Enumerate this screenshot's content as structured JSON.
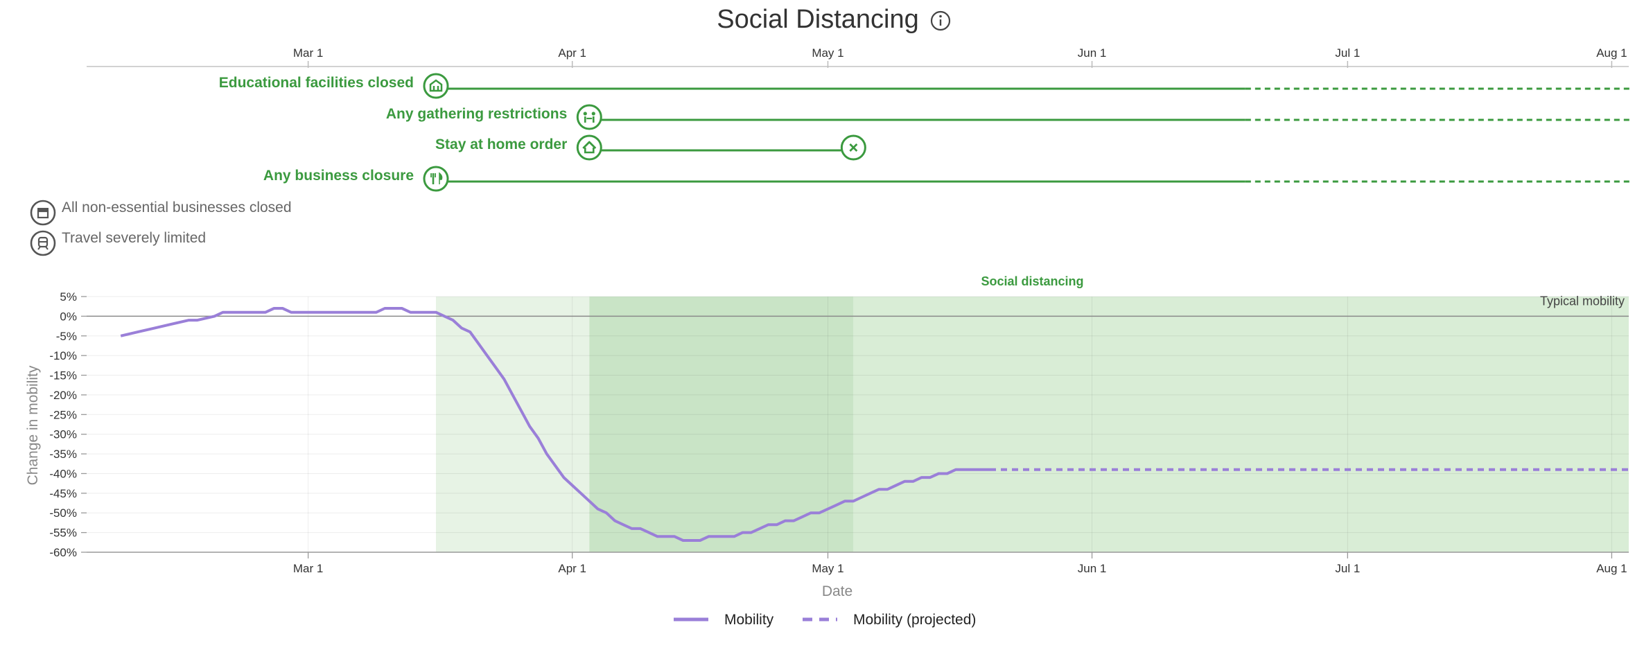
{
  "title": "Social Distancing",
  "timeline": {
    "tick_labels": [
      "Mar 1",
      "Apr 1",
      "May 1",
      "Jun 1",
      "Jul 1",
      "Aug 1"
    ],
    "tick_dates": [
      "2020-03-01",
      "2020-04-01",
      "2020-05-01",
      "2020-06-01",
      "2020-07-01",
      "2020-08-01"
    ],
    "today": "2020-06-19",
    "interventions": [
      {
        "label": "Educational facilities closed",
        "icon": "school-icon",
        "start": "2020-03-16",
        "end": null
      },
      {
        "label": "Any gathering restrictions",
        "icon": "gathering-icon",
        "start": "2020-04-03",
        "end": null
      },
      {
        "label": "Stay at home order",
        "icon": "home-icon",
        "start": "2020-04-03",
        "end": "2020-05-04"
      },
      {
        "label": "Any business closure",
        "icon": "business-icon",
        "start": "2020-03-16",
        "end": null
      }
    ],
    "legend": [
      {
        "label": "All non-essential businesses closed",
        "icon": "store-icon"
      },
      {
        "label": "Travel severely limited",
        "icon": "train-icon"
      }
    ]
  },
  "colors": {
    "green": "#3b9a3f",
    "mobility": "#9a7fd8",
    "band_light": "#e7f3e5",
    "band_dark": "#c9e4c6",
    "band_mid": "#d9edd6",
    "grid": "#e6e6e6",
    "axis_text": "#333333",
    "muted": "#888888"
  },
  "chart_data": {
    "type": "line",
    "title": "",
    "xlabel": "Date",
    "ylabel": "Change in mobility",
    "x_range": [
      "2020-02-04",
      "2020-08-03"
    ],
    "ylim": [
      -60,
      5
    ],
    "yticks": [
      5,
      0,
      -5,
      -10,
      -15,
      -20,
      -25,
      -30,
      -35,
      -40,
      -45,
      -50,
      -55,
      -60
    ],
    "ytick_labels": [
      "5%",
      "0%",
      "-5%",
      "-10%",
      "-15%",
      "-20%",
      "-25%",
      "-30%",
      "-35%",
      "-40%",
      "-45%",
      "-50%",
      "-55%",
      "-60%"
    ],
    "xticks": [
      "2020-03-01",
      "2020-04-01",
      "2020-05-01",
      "2020-06-01",
      "2020-07-01",
      "2020-08-01"
    ],
    "xtick_labels": [
      "Mar 1",
      "Apr 1",
      "May 1",
      "Jun 1",
      "Jul 1",
      "Aug 1"
    ],
    "grid": true,
    "reference_line": {
      "y": 0,
      "label": "Typical mobility"
    },
    "bands": [
      {
        "start": "2020-03-16",
        "end": "2020-04-03",
        "shade": "light"
      },
      {
        "start": "2020-04-03",
        "end": "2020-05-04",
        "shade": "dark"
      },
      {
        "start": "2020-05-04",
        "end": "2020-08-03",
        "shade": "mid"
      }
    ],
    "band_label": "Social distancing",
    "series": [
      {
        "name": "Mobility",
        "style": "solid",
        "points": [
          [
            "2020-02-08",
            -5
          ],
          [
            "2020-02-10",
            -4
          ],
          [
            "2020-02-12",
            -3
          ],
          [
            "2020-02-14",
            -2
          ],
          [
            "2020-02-16",
            -1
          ],
          [
            "2020-02-17",
            -1
          ],
          [
            "2020-02-19",
            0
          ],
          [
            "2020-02-20",
            1
          ],
          [
            "2020-02-22",
            1
          ],
          [
            "2020-02-24",
            1
          ],
          [
            "2020-02-25",
            1
          ],
          [
            "2020-02-26",
            2
          ],
          [
            "2020-02-27",
            2
          ],
          [
            "2020-02-28",
            1
          ],
          [
            "2020-03-01",
            1
          ],
          [
            "2020-03-03",
            1
          ],
          [
            "2020-03-05",
            1
          ],
          [
            "2020-03-07",
            1
          ],
          [
            "2020-03-09",
            1
          ],
          [
            "2020-03-10",
            2
          ],
          [
            "2020-03-12",
            2
          ],
          [
            "2020-03-13",
            1
          ],
          [
            "2020-03-14",
            1
          ],
          [
            "2020-03-16",
            1
          ],
          [
            "2020-03-17",
            0
          ],
          [
            "2020-03-18",
            -1
          ],
          [
            "2020-03-19",
            -3
          ],
          [
            "2020-03-20",
            -4
          ],
          [
            "2020-03-21",
            -7
          ],
          [
            "2020-03-22",
            -10
          ],
          [
            "2020-03-23",
            -13
          ],
          [
            "2020-03-24",
            -16
          ],
          [
            "2020-03-25",
            -20
          ],
          [
            "2020-03-26",
            -24
          ],
          [
            "2020-03-27",
            -28
          ],
          [
            "2020-03-28",
            -31
          ],
          [
            "2020-03-29",
            -35
          ],
          [
            "2020-03-30",
            -38
          ],
          [
            "2020-03-31",
            -41
          ],
          [
            "2020-04-01",
            -43
          ],
          [
            "2020-04-02",
            -45
          ],
          [
            "2020-04-03",
            -47
          ],
          [
            "2020-04-04",
            -49
          ],
          [
            "2020-04-05",
            -50
          ],
          [
            "2020-04-06",
            -52
          ],
          [
            "2020-04-07",
            -53
          ],
          [
            "2020-04-08",
            -54
          ],
          [
            "2020-04-09",
            -54
          ],
          [
            "2020-04-10",
            -55
          ],
          [
            "2020-04-11",
            -56
          ],
          [
            "2020-04-13",
            -56
          ],
          [
            "2020-04-14",
            -57
          ],
          [
            "2020-04-16",
            -57
          ],
          [
            "2020-04-17",
            -56
          ],
          [
            "2020-04-20",
            -56
          ],
          [
            "2020-04-21",
            -55
          ],
          [
            "2020-04-22",
            -55
          ],
          [
            "2020-04-23",
            -54
          ],
          [
            "2020-04-24",
            -53
          ],
          [
            "2020-04-25",
            -53
          ],
          [
            "2020-04-26",
            -52
          ],
          [
            "2020-04-27",
            -52
          ],
          [
            "2020-04-28",
            -51
          ],
          [
            "2020-04-29",
            -50
          ],
          [
            "2020-04-30",
            -50
          ],
          [
            "2020-05-01",
            -49
          ],
          [
            "2020-05-02",
            -48
          ],
          [
            "2020-05-03",
            -47
          ],
          [
            "2020-05-04",
            -47
          ],
          [
            "2020-05-05",
            -46
          ],
          [
            "2020-05-06",
            -45
          ],
          [
            "2020-05-07",
            -44
          ],
          [
            "2020-05-08",
            -44
          ],
          [
            "2020-05-09",
            -43
          ],
          [
            "2020-05-10",
            -42
          ],
          [
            "2020-05-11",
            -42
          ],
          [
            "2020-05-12",
            -41
          ],
          [
            "2020-05-13",
            -41
          ],
          [
            "2020-05-14",
            -40
          ],
          [
            "2020-05-15",
            -40
          ],
          [
            "2020-05-16",
            -39
          ],
          [
            "2020-05-17",
            -39
          ],
          [
            "2020-05-18",
            -39
          ],
          [
            "2020-05-19",
            -39
          ],
          [
            "2020-05-20",
            -39
          ]
        ]
      },
      {
        "name": "Mobility (projected)",
        "style": "dashed",
        "points": [
          [
            "2020-05-20",
            -39
          ],
          [
            "2020-08-03",
            -39
          ]
        ]
      }
    ],
    "legend_position": "bottom-center"
  }
}
